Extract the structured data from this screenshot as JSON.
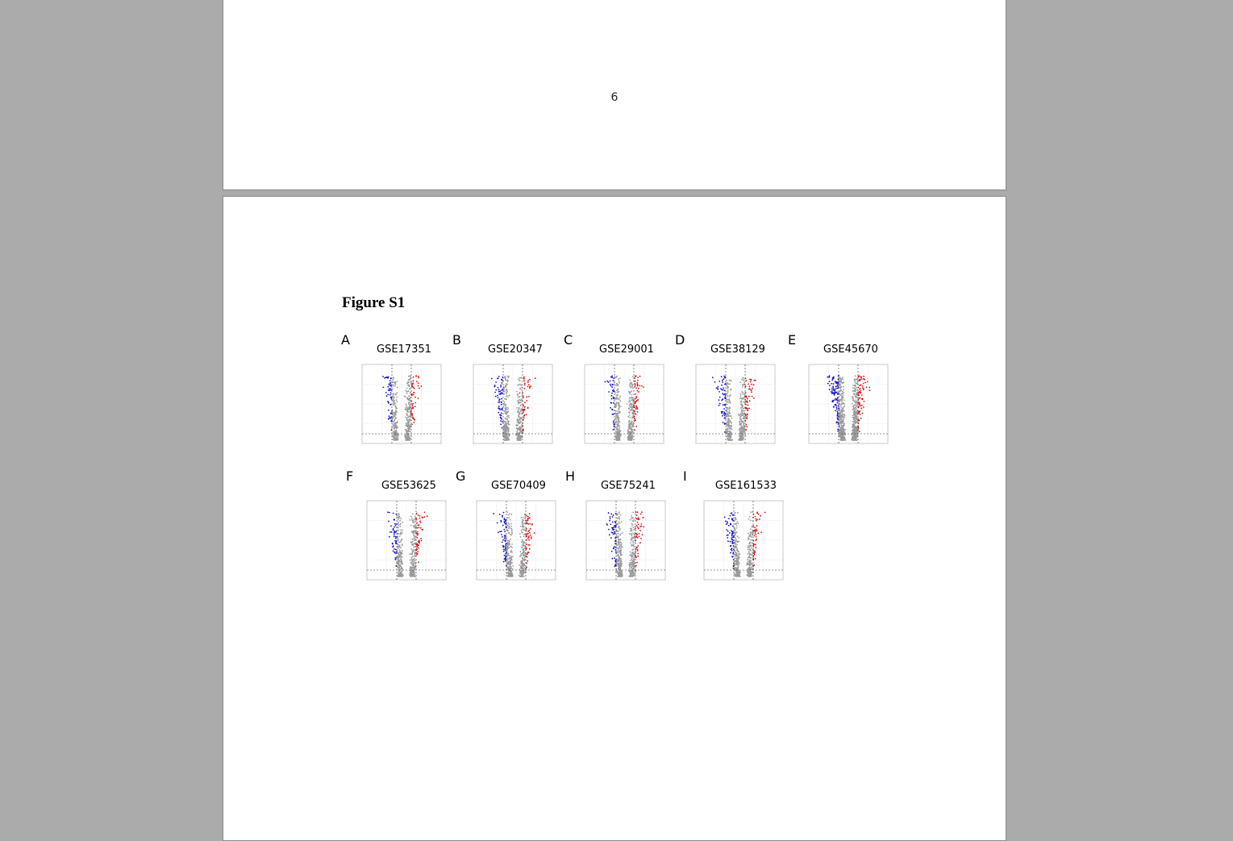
{
  "page_number": "6",
  "figure_title": "Figure S1",
  "colors": {
    "down": "#1010d0",
    "up": "#e01010",
    "ns": "#9a9a9a",
    "background": "#ababab"
  },
  "panels": [
    {
      "letter": "A",
      "title": "GSE17351"
    },
    {
      "letter": "B",
      "title": "GSE20347"
    },
    {
      "letter": "C",
      "title": "GSE29001"
    },
    {
      "letter": "D",
      "title": "GSE38129"
    },
    {
      "letter": "E",
      "title": "GSE45670"
    },
    {
      "letter": "F",
      "title": "GSE53625"
    },
    {
      "letter": "G",
      "title": "GSE70409"
    },
    {
      "letter": "H",
      "title": "GSE75241"
    },
    {
      "letter": "I",
      "title": "GSE161533"
    }
  ]
}
